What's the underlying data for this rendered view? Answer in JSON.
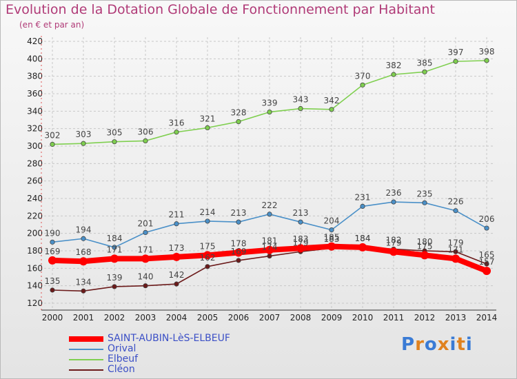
{
  "header": {
    "title": "Evolution de la Dotation Globale de Fonctionnement par Habitant",
    "subtitle": "(en € et par an)"
  },
  "logo": {
    "text": "Proxiti",
    "colors": [
      "#3a7bd5",
      "#e0821f",
      "#3a7bd5",
      "#e0821f",
      "#3a7bd5",
      "#e0821f",
      "#3a7bd5"
    ]
  },
  "chart_data": {
    "type": "line",
    "x": [
      2000,
      2001,
      2002,
      2003,
      2004,
      2005,
      2006,
      2007,
      2008,
      2009,
      2010,
      2011,
      2012,
      2013,
      2014
    ],
    "ylim": [
      120,
      420
    ],
    "yticks": [
      120,
      140,
      160,
      180,
      200,
      220,
      240,
      260,
      280,
      300,
      320,
      340,
      360,
      380,
      400,
      420
    ],
    "grid": true,
    "legend_position": "bottom-left",
    "series": [
      {
        "name": "SAINT-AUBIN-LèS-ELBEUF",
        "color": "#ff0000",
        "values": [
          169,
          168,
          171,
          171,
          173,
          175,
          178,
          181,
          183,
          185,
          184,
          179,
          175,
          171,
          157
        ]
      },
      {
        "name": "Orival",
        "color": "#4a90c8",
        "values": [
          190,
          194,
          184,
          201,
          211,
          214,
          213,
          222,
          213,
          204,
          231,
          236,
          235,
          226,
          206
        ]
      },
      {
        "name": "Elbeuf",
        "color": "#7fcf4f",
        "values": [
          302,
          303,
          305,
          306,
          316,
          321,
          328,
          339,
          343,
          342,
          370,
          382,
          385,
          397,
          398
        ]
      },
      {
        "name": "Cléon",
        "color": "#6b1a1a",
        "values": [
          135,
          134,
          139,
          140,
          142,
          162,
          169,
          174,
          179,
          183,
          184,
          182,
          180,
          179,
          165
        ]
      }
    ]
  }
}
